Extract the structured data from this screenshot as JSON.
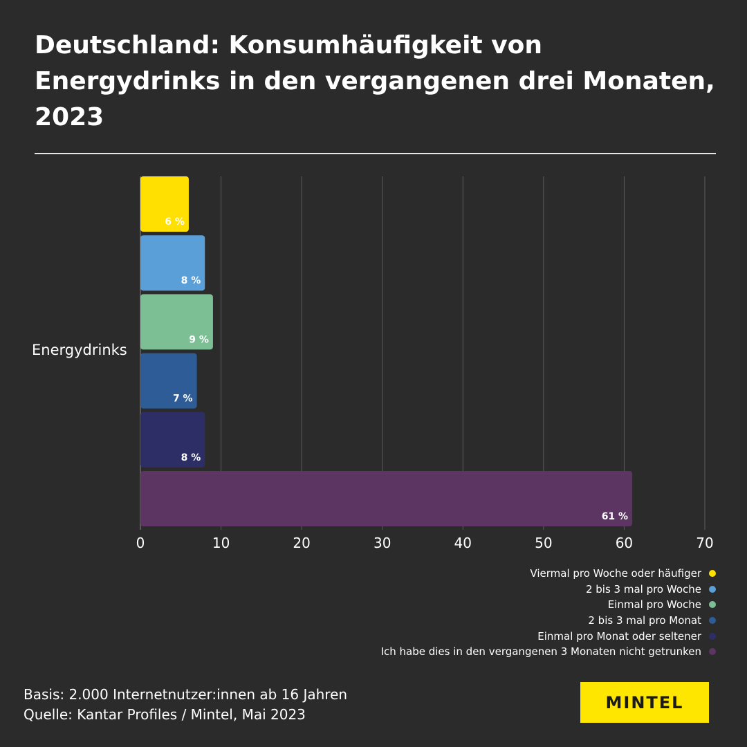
{
  "title": "Deutschland: Konsumhäufigkeit von Energydrinks in den vergangenen drei Monaten, 2023",
  "chart_data": {
    "type": "bar",
    "orientation": "horizontal",
    "categories": [
      "Energydrinks"
    ],
    "series": [
      {
        "name": "Viermal pro Woche oder häufiger",
        "value": 6,
        "label": "6 %",
        "color": "#ffe000"
      },
      {
        "name": "2 bis 3 mal pro Woche",
        "value": 8,
        "label": "8 %",
        "color": "#5a9fd8"
      },
      {
        "name": "Einmal pro Woche",
        "value": 9,
        "label": "9 %",
        "color": "#7cbf94"
      },
      {
        "name": "2 bis 3 mal pro Monat",
        "value": 7,
        "label": "7 %",
        "color": "#2e5c96"
      },
      {
        "name": "Einmal pro Monat oder seltener",
        "value": 8,
        "label": "8 %",
        "color": "#2e2e66"
      },
      {
        "name": "Ich habe dies in den vergangenen 3 Monaten nicht getrunken",
        "value": 61,
        "label": "61 %",
        "color": "#5c3562"
      }
    ],
    "xlim": [
      0,
      70
    ],
    "xticks": [
      "0",
      "10",
      "20",
      "30",
      "40",
      "50",
      "60",
      "70"
    ],
    "grid": true,
    "legend_position": "bottom-right"
  },
  "footnote": {
    "line1": "Basis: 2.000 Internetnutzer:innen ab 16 Jahren",
    "line2": "Quelle: Kantar Profiles / Mintel, Mai 2023"
  },
  "logo": "MINTEL"
}
